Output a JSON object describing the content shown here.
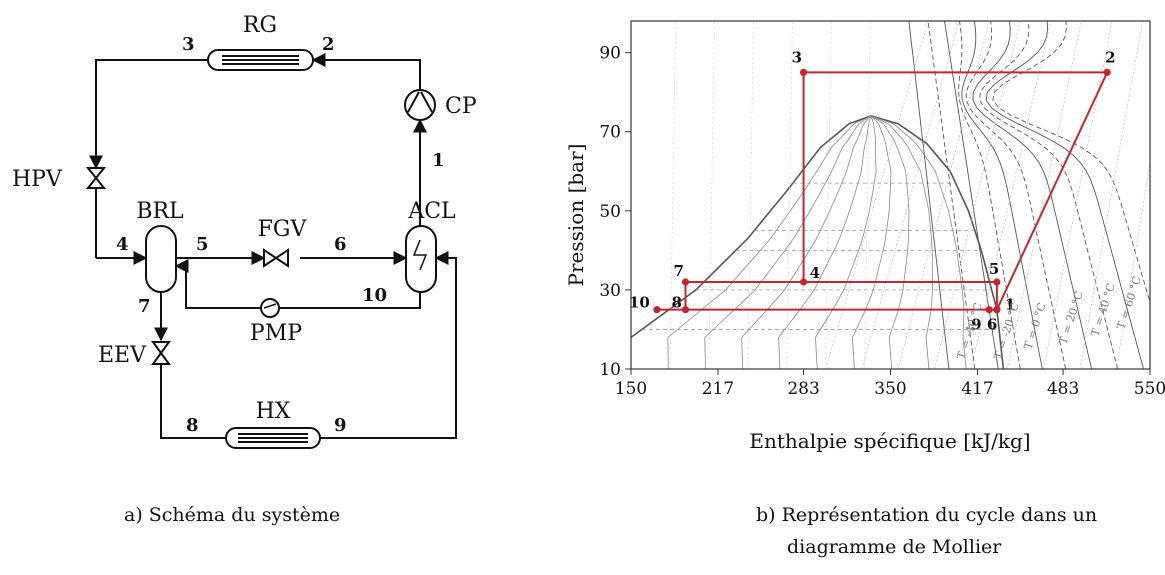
{
  "schema": {
    "components": {
      "rg": "RG",
      "cp": "CP",
      "hpv": "HPV",
      "brl": "BRL",
      "fgv": "FGV",
      "acl": "ACL",
      "pmp": "PMP",
      "eev": "EEV",
      "hx": "HX"
    },
    "state_points": [
      "1",
      "2",
      "3",
      "4",
      "5",
      "6",
      "7",
      "8",
      "9",
      "10"
    ],
    "caption": "a)  Schéma du système"
  },
  "mollier": {
    "ylabel": "Pression [bar]",
    "xlabel": "Enthalpie spécifique [kJ/kg]",
    "x_ticks": [
      "150",
      "217",
      "283",
      "350",
      "417",
      "483",
      "550"
    ],
    "y_ticks": [
      "10",
      "30",
      "50",
      "70",
      "90"
    ],
    "isotherm_labels": [
      "T = -40 °C",
      "T = -20 °C",
      "T = 0 °C",
      "T = 20 °C",
      "T = 40 °C",
      "T = 60 °C"
    ],
    "caption_line1": "b)  Représentation du cycle dans un",
    "caption_line2": "diagramme de Mollier"
  },
  "chart_data": {
    "type": "line",
    "xlabel": "Enthalpie spécifique [kJ/kg]",
    "ylabel": "Pression [bar]",
    "xlim": [
      150,
      550
    ],
    "ylim": [
      10,
      98
    ],
    "grid": true,
    "series": [
      {
        "name": "",
        "points": [
          {
            "label": "1",
            "h": 432,
            "p": 25
          },
          {
            "label": "2",
            "h": 517,
            "p": 85
          },
          {
            "label": "3",
            "h": 283,
            "p": 85
          },
          {
            "label": "4",
            "h": 283,
            "p": 32
          },
          {
            "label": "5",
            "h": 432,
            "p": 32
          },
          {
            "label": "6",
            "h": 432,
            "p": 25
          },
          {
            "label": "7",
            "h": 192,
            "p": 32
          },
          {
            "label": "8",
            "h": 192,
            "p": 25
          },
          {
            "label": "9",
            "h": 426,
            "p": 25
          },
          {
            "label": "10",
            "h": 170,
            "p": 25
          }
        ]
      }
    ]
  }
}
